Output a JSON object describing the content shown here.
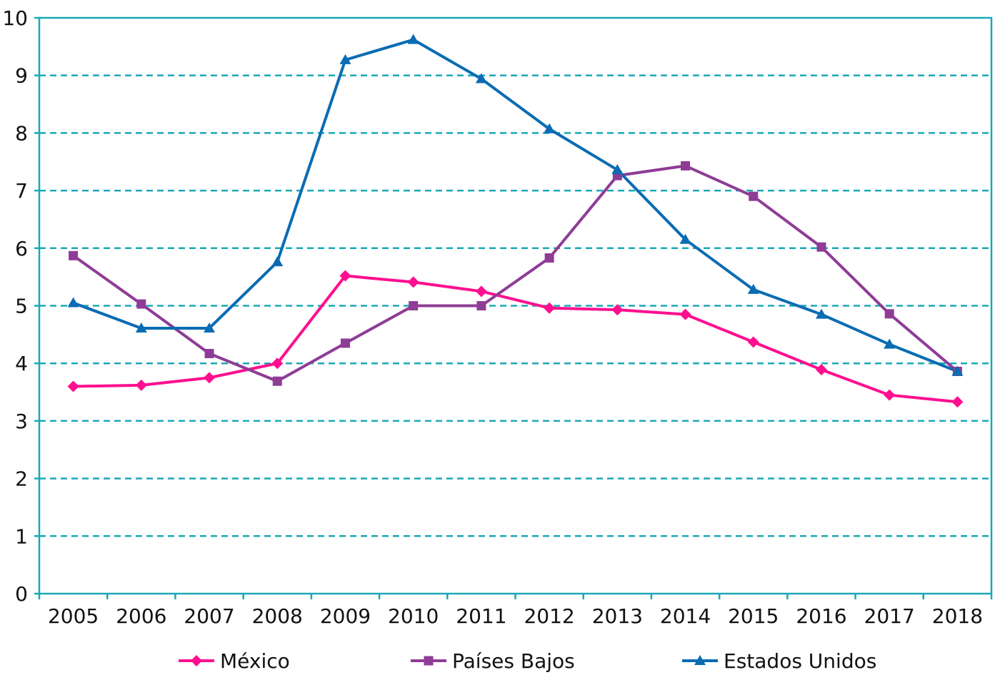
{
  "chart_data": {
    "type": "line",
    "title": "",
    "xlabel": "",
    "ylabel": "",
    "x": [
      "2005",
      "2006",
      "2007",
      "2008",
      "2009",
      "2010",
      "2011",
      "2012",
      "2013",
      "2014",
      "2015",
      "2016",
      "2017",
      "2018"
    ],
    "ylim": [
      0,
      10
    ],
    "yticks": [
      0,
      1,
      2,
      3,
      4,
      5,
      6,
      7,
      8,
      9,
      10
    ],
    "grid": "horizontal dashed",
    "legend_position": "bottom",
    "series": [
      {
        "name": "México",
        "color": "#ff0f8f",
        "marker": "diamond",
        "values": [
          3.6,
          3.62,
          3.75,
          4.0,
          5.52,
          5.41,
          5.25,
          4.96,
          4.93,
          4.85,
          4.37,
          3.89,
          3.45,
          3.33
        ]
      },
      {
        "name": "Países Bajos",
        "color": "#8e3c96",
        "marker": "square",
        "values": [
          5.87,
          5.03,
          4.17,
          3.69,
          4.35,
          5.0,
          5.0,
          5.83,
          7.26,
          7.43,
          6.9,
          6.02,
          4.86,
          3.86
        ]
      },
      {
        "name": "Estados Unidos",
        "color": "#0a6cb3",
        "marker": "triangle",
        "values": [
          5.05,
          4.61,
          4.61,
          5.76,
          9.27,
          9.62,
          8.94,
          8.07,
          7.36,
          6.15,
          5.28,
          4.85,
          4.33,
          3.86
        ]
      }
    ]
  },
  "colors": {
    "axis": "#19a9b5",
    "grid": "#19a9b5"
  }
}
